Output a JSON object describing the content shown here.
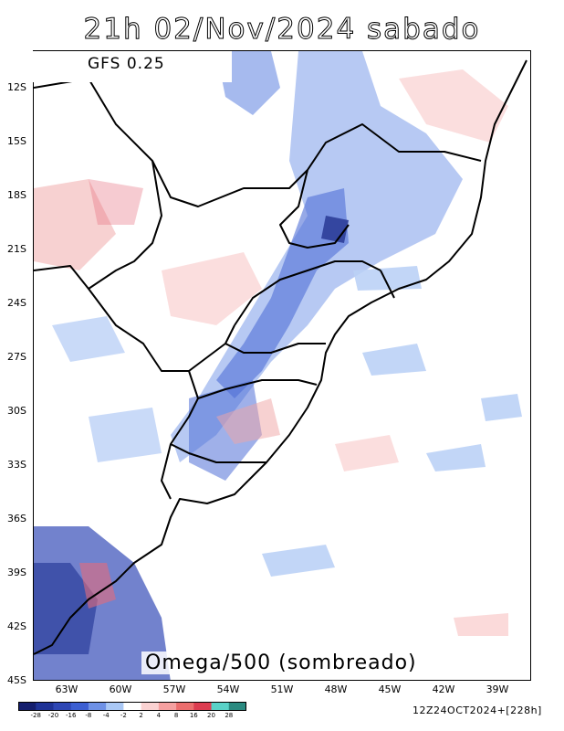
{
  "title": "21h 02/Nov/2024 sabado",
  "model_label": "GFS 0.25",
  "field_caption": "Omega/500 (sombreado)",
  "run_info": "12Z24OCT2024+[228h]",
  "lat_labels": [
    "12S",
    "15S",
    "18S",
    "21S",
    "24S",
    "27S",
    "30S",
    "33S",
    "36S",
    "39S",
    "42S",
    "45S"
  ],
  "lon_labels": [
    "63W",
    "60W",
    "57W",
    "54W",
    "51W",
    "48W",
    "45W",
    "42W",
    "39W"
  ],
  "colorbar": {
    "labels": [
      "-28",
      "-20",
      "-16",
      "-8",
      "-4",
      "-2",
      "2",
      "4",
      "8",
      "16",
      "20",
      "28"
    ],
    "colors": [
      "#141e6e",
      "#1e3296",
      "#2d46b4",
      "#3c5fd2",
      "#6e91e6",
      "#aac8f5",
      "#ffffff",
      "#fbd2d2",
      "#f5a0a0",
      "#eb6e6e",
      "#dc3c50",
      "#5ad2c8",
      "#2a8a80"
    ]
  },
  "map_colors": {
    "neg_strong": "#2d3c9e",
    "neg_mid": "#5a7fe0",
    "neg_light": "#b4ccf5",
    "pos_light": "#fad2d2",
    "pos_mid": "#f09a9a",
    "pos_strong": "#e05a6a",
    "border": "#000000"
  }
}
